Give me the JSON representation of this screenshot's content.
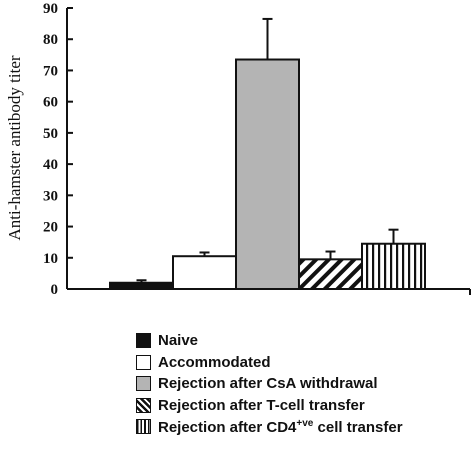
{
  "chart_data": {
    "type": "bar",
    "ylabel": "Anti-hamster antibody titer",
    "xlabel": "",
    "title": "",
    "ylim": [
      0,
      90
    ],
    "yticks": [
      0,
      10,
      20,
      30,
      40,
      50,
      60,
      70,
      80,
      90
    ],
    "grid": false,
    "legend_position": "bottom",
    "series": [
      {
        "name": "Naive",
        "value": 2,
        "error": 0.8,
        "fill": "solid-black"
      },
      {
        "name": "Accommodated",
        "value": 10.5,
        "error": 1.2,
        "fill": "white"
      },
      {
        "name": "Rejection after CsA withdrawal",
        "value": 73.5,
        "error": 13,
        "fill": "gray"
      },
      {
        "name": "Rejection after T-cell transfer",
        "value": 9.5,
        "error": 2.5,
        "fill": "diagonal-hatch"
      },
      {
        "name": "Rejection after CD4+ve cell transfer",
        "value": 14.5,
        "error": 4.5,
        "fill": "vertical-hatch"
      }
    ]
  },
  "legend": {
    "items": [
      {
        "label": "Naive"
      },
      {
        "label": "Accommodated"
      },
      {
        "label": "Rejection after CsA withdrawal"
      },
      {
        "label": "Rejection after T-cell transfer"
      },
      {
        "label_pre": "Rejection after CD4",
        "label_sup": "+ve",
        "label_post": " cell transfer"
      }
    ]
  },
  "colors": {
    "black": "#111111",
    "gray": "#b4b4b4",
    "white": "#ffffff"
  }
}
